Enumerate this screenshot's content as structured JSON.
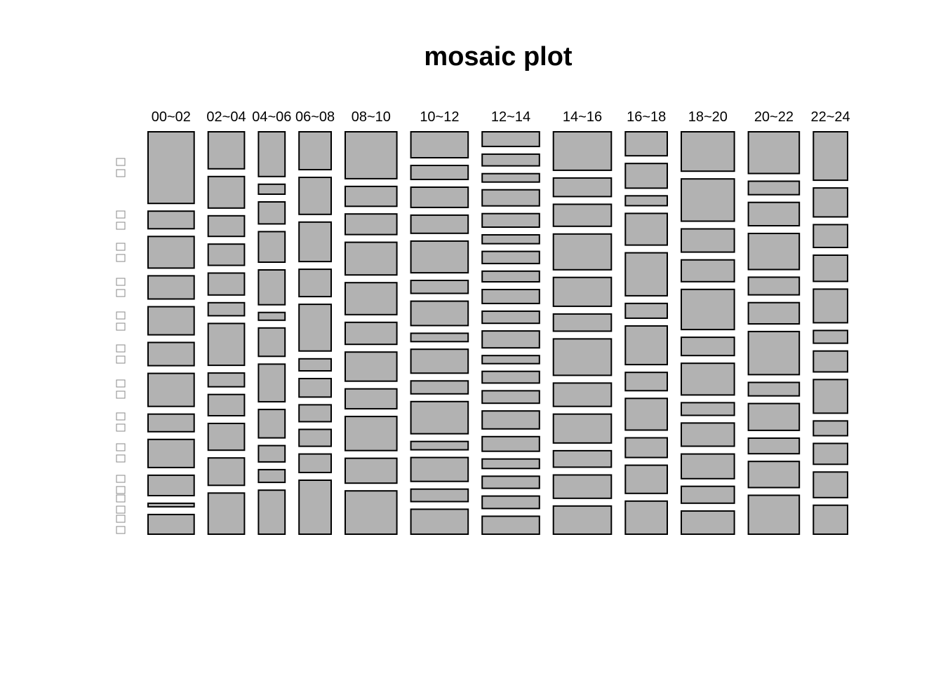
{
  "chart_data": {
    "type": "mosaic",
    "title": "mosaic plot",
    "columns": [
      "00~02",
      "02~04",
      "04~06",
      "06~08",
      "08~10",
      "10~12",
      "12~14",
      "14~16",
      "16~18",
      "18~20",
      "20~22",
      "22~24"
    ],
    "column_weights": [
      66,
      52,
      38,
      46,
      74,
      82,
      82,
      83,
      60,
      76,
      73,
      49
    ],
    "row_label_glyphs": [
      "□",
      "□",
      "□",
      "□",
      "□",
      "□",
      "□",
      "□",
      "□",
      "□",
      "□",
      "□",
      "□",
      "□",
      "□",
      "□",
      "□",
      "□",
      "□",
      "□",
      "□",
      "□",
      "□",
      "□",
      "□",
      "□",
      "□",
      "□",
      "□",
      "□"
    ],
    "tiles": [
      [
        102,
        25,
        45,
        33,
        40,
        33,
        47,
        25,
        40,
        29,
        5,
        28
      ],
      [
        54,
        46,
        30,
        31,
        32,
        19,
        61,
        20,
        31,
        39,
        40,
        60
      ],
      [
        63,
        14,
        31,
        43,
        49,
        11,
        40,
        53,
        40,
        23,
        18,
        62
      ],
      [
        47,
        46,
        49,
        34,
        58,
        15,
        23,
        21,
        21,
        23,
        67
      ],
      [
        66,
        28,
        29,
        46,
        45,
        31,
        41,
        28,
        48,
        35,
        61
      ],
      [
        50,
        27,
        39,
        35,
        61,
        25,
        47,
        16,
        46,
        25,
        62,
        16,
        46,
        24,
        48
      ],
      [
        40,
        32,
        23,
        44,
        37,
        24,
        33,
        29,
        38,
        33,
        46,
        22,
        32,
        34,
        49,
        40,
        26,
        33,
        34,
        49
      ],
      [
        56,
        27,
        32,
        52,
        42,
        25,
        53,
        34,
        42,
        24,
        34,
        41
      ],
      [
        34,
        35,
        14,
        45,
        61,
        21,
        55,
        26,
        45,
        28,
        40,
        47
      ],
      [
        56,
        60,
        33,
        31,
        57,
        26,
        45,
        18,
        33,
        35,
        24,
        33
      ],
      [
        59,
        19,
        33,
        51,
        25,
        30,
        61,
        19,
        38,
        22,
        37,
        55
      ],
      [
        72,
        43,
        34,
        39,
        50,
        19,
        31,
        50,
        22,
        31,
        38,
        43
      ]
    ]
  }
}
